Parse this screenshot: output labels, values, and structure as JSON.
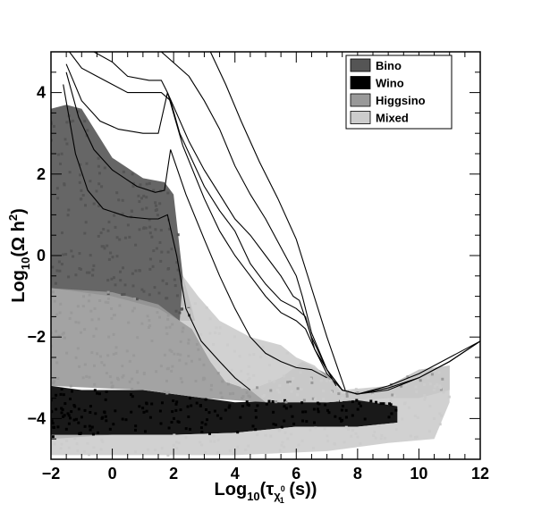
{
  "chart_data": {
    "type": "scatter",
    "xlabel": "Log10(τχ10 (s))",
    "ylabel": "Log10(Ω h2)",
    "xlim": [
      -2,
      12
    ],
    "ylim": [
      -5,
      5
    ],
    "x_ticks": [
      -2,
      0,
      2,
      4,
      6,
      8,
      10,
      12
    ],
    "y_ticks": [
      -4,
      -2,
      0,
      2,
      4
    ],
    "x_tick_labels": [
      "−2",
      "0",
      "2",
      "4",
      "6",
      "8",
      "10",
      "12"
    ],
    "y_tick_labels": [
      "−4",
      "−2",
      "0",
      "2",
      "4"
    ],
    "x_title": {
      "base": "Log",
      "sub": "10",
      "open": "(τ",
      "sym": "χ",
      "sym_sup": "0",
      "sym_sub": "1",
      "close": " (s))"
    },
    "y_title": {
      "base": "Log",
      "sub": "10",
      "open": "(Ω h",
      "sup": "2",
      "close": ")"
    },
    "legend_position": "top-right",
    "series": [
      {
        "name": "Bino",
        "color": "#555555",
        "regions": [
          {
            "polygon": [
              [
                -2,
                3.6
              ],
              [
                -1.5,
                3.7
              ],
              [
                -1,
                3.6
              ],
              [
                0,
                2.4
              ],
              [
                1,
                1.9
              ],
              [
                1.7,
                1.8
              ],
              [
                2,
                1.5
              ],
              [
                2.3,
                -0.5
              ],
              [
                2.6,
                -1.3
              ],
              [
                2.7,
                -1.6
              ],
              [
                2.2,
                -1.6
              ],
              [
                1.5,
                -1.3
              ],
              [
                0,
                -1.0
              ],
              [
                -1,
                -0.9
              ],
              [
                -2,
                -0.8
              ]
            ]
          }
        ]
      },
      {
        "name": "Wino",
        "color": "#000000",
        "regions": [
          {
            "polygon": [
              [
                -2,
                -3.2
              ],
              [
                -1,
                -3.3
              ],
              [
                1,
                -3.3
              ],
              [
                3,
                -3.5
              ],
              [
                4,
                -3.6
              ],
              [
                6,
                -3.55
              ],
              [
                7,
                -3.6
              ],
              [
                8,
                -3.55
              ],
              [
                9,
                -3.6
              ],
              [
                9.3,
                -3.7
              ],
              [
                9.3,
                -4.1
              ],
              [
                8,
                -4.2
              ],
              [
                6,
                -4.2
              ],
              [
                4,
                -4.35
              ],
              [
                2,
                -4.4
              ],
              [
                0,
                -4.4
              ],
              [
                -2,
                -4.5
              ]
            ]
          }
        ]
      },
      {
        "name": "Higgsino",
        "color": "#999999",
        "regions": [
          {
            "polygon": [
              [
                -2,
                -0.8
              ],
              [
                0,
                -0.9
              ],
              [
                1.5,
                -1.2
              ],
              [
                2.2,
                -1.6
              ],
              [
                2.6,
                -1.8
              ],
              [
                3.2,
                -2.6
              ],
              [
                3.7,
                -3.1
              ],
              [
                4.5,
                -3.3
              ],
              [
                5.5,
                -3.0
              ],
              [
                6.2,
                -2.6
              ],
              [
                7,
                -2.9
              ],
              [
                7.5,
                -3.4
              ],
              [
                9,
                -3.2
              ],
              [
                10,
                -2.8
              ],
              [
                11,
                -2.7
              ],
              [
                11,
                -3.3
              ],
              [
                10,
                -3.5
              ],
              [
                9,
                -3.5
              ],
              [
                7,
                -3.6
              ],
              [
                5,
                -3.6
              ],
              [
                3,
                -3.5
              ],
              [
                1,
                -3.3
              ],
              [
                -2,
                -3.2
              ]
            ]
          }
        ]
      },
      {
        "name": "Mixed",
        "color": "#cccccc",
        "regions": [
          {
            "polygon": [
              [
                2.3,
                -0.5
              ],
              [
                2.8,
                -1.0
              ],
              [
                3.5,
                -1.6
              ],
              [
                4.5,
                -2.0
              ],
              [
                5.5,
                -2.2
              ],
              [
                6,
                -2.5
              ],
              [
                6.6,
                -2.7
              ],
              [
                7,
                -3.0
              ],
              [
                7.5,
                -3.3
              ],
              [
                9,
                -3.2
              ],
              [
                10,
                -2.8
              ],
              [
                11,
                -2.7
              ],
              [
                11,
                -3.6
              ],
              [
                10.5,
                -4.5
              ],
              [
                9,
                -4.6
              ],
              [
                7,
                -4.8
              ],
              [
                4,
                -4.9
              ],
              [
                1,
                -4.9
              ],
              [
                -2,
                -4.9
              ],
              [
                -2,
                -4.4
              ],
              [
                0,
                -4.4
              ],
              [
                2,
                -4.4
              ],
              [
                4,
                -4.35
              ],
              [
                6,
                -4.2
              ],
              [
                8,
                -4.2
              ],
              [
                9.3,
                -4.1
              ],
              [
                9.3,
                -3.7
              ],
              [
                8,
                -3.55
              ],
              [
                7,
                -3.6
              ],
              [
                5,
                -3.6
              ],
              [
                4.5,
                -3.3
              ],
              [
                3.7,
                -3.1
              ],
              [
                3.2,
                -2.6
              ],
              [
                2.6,
                -1.8
              ],
              [
                2.2,
                -1.6
              ]
            ]
          }
        ]
      }
    ],
    "curves": [
      {
        "points": [
          [
            -1.6,
            4.2
          ],
          [
            -1.2,
            2.5
          ],
          [
            -0.8,
            1.6
          ],
          [
            -0.3,
            1.15
          ],
          [
            0.5,
            0.95
          ],
          [
            1.2,
            0.9
          ],
          [
            1.5,
            0.9
          ],
          [
            1.8,
            1.0
          ],
          [
            2.1,
            0.0
          ],
          [
            2.4,
            -1.3
          ],
          [
            2.9,
            -2.1
          ],
          [
            3.5,
            -2.6
          ],
          [
            4,
            -3.0
          ],
          [
            4.5,
            -3.3
          ]
        ]
      },
      {
        "points": [
          [
            -1.5,
            4.5
          ],
          [
            -1.1,
            3.4
          ],
          [
            -0.6,
            2.6
          ],
          [
            0,
            2.1
          ],
          [
            0.8,
            1.7
          ],
          [
            1.4,
            1.55
          ],
          [
            1.7,
            1.6
          ],
          [
            1.9,
            2.6
          ],
          [
            2.4,
            1.5
          ],
          [
            3,
            0.4
          ],
          [
            3.5,
            -0.5
          ],
          [
            4,
            -1.3
          ],
          [
            4.5,
            -2.0
          ],
          [
            5,
            -2.4
          ],
          [
            5.5,
            -2.6
          ],
          [
            6,
            -2.75
          ],
          [
            6.5,
            -2.8
          ],
          [
            7,
            -3.0
          ]
        ]
      },
      {
        "points": [
          [
            -1.5,
            4.7
          ],
          [
            -1,
            3.8
          ],
          [
            -0.4,
            3.3
          ],
          [
            0.2,
            3.1
          ],
          [
            1,
            3.0
          ],
          [
            1.5,
            3.0
          ],
          [
            1.8,
            4.0
          ],
          [
            2.3,
            2.7
          ],
          [
            3,
            1.4
          ],
          [
            3.5,
            0.6
          ],
          [
            4,
            0.0
          ],
          [
            4.5,
            -0.5
          ],
          [
            5,
            -1.0
          ],
          [
            5.5,
            -1.4
          ],
          [
            6,
            -1.6
          ],
          [
            6.3,
            -1.8
          ],
          [
            6.6,
            -2.3
          ],
          [
            7,
            -2.8
          ],
          [
            7.3,
            -3.2
          ]
        ]
      },
      {
        "points": [
          [
            -1.4,
            5.0
          ],
          [
            -1,
            4.6
          ],
          [
            -0.5,
            4.4
          ],
          [
            0,
            4.2
          ],
          [
            0.5,
            4.0
          ],
          [
            1.3,
            4.0
          ],
          [
            1.6,
            4.0
          ],
          [
            1.9,
            3.8
          ],
          [
            2.2,
            3.0
          ],
          [
            3,
            1.7
          ],
          [
            3.5,
            1.1
          ],
          [
            4,
            0.6
          ],
          [
            4.5,
            -0.2
          ],
          [
            5,
            -0.7
          ],
          [
            5.5,
            -1.1
          ],
          [
            6,
            -1.3
          ],
          [
            6.3,
            -1.5
          ],
          [
            6.6,
            -2.3
          ],
          [
            7,
            -2.9
          ],
          [
            7.5,
            -3.3
          ],
          [
            8,
            -3.4
          ],
          [
            9,
            -3.3
          ],
          [
            10,
            -3.0
          ],
          [
            11,
            -2.6
          ],
          [
            12,
            -2.1
          ]
        ]
      },
      {
        "points": [
          [
            -0.6,
            5.0
          ],
          [
            0,
            4.75
          ],
          [
            0.5,
            4.4
          ],
          [
            1.2,
            4.3
          ],
          [
            1.6,
            4.3
          ],
          [
            1.8,
            4.0
          ],
          [
            2.5,
            2.8
          ],
          [
            3,
            2.1
          ],
          [
            3.5,
            1.5
          ],
          [
            4,
            0.9
          ],
          [
            4.5,
            0.5
          ],
          [
            5,
            0.0
          ],
          [
            5.5,
            -0.5
          ],
          [
            5.9,
            -1.0
          ],
          [
            6.1,
            -1.1
          ],
          [
            6.5,
            -2.0
          ],
          [
            7,
            -2.8
          ],
          [
            7.5,
            -3.3
          ],
          [
            8,
            -3.4
          ],
          [
            9,
            -3.2
          ],
          [
            10,
            -2.9
          ],
          [
            11,
            -2.5
          ],
          [
            12,
            -2.1
          ]
        ]
      },
      {
        "points": [
          [
            1.6,
            5.0
          ],
          [
            2.5,
            4.4
          ],
          [
            3,
            3.8
          ],
          [
            3.5,
            3.1
          ],
          [
            4,
            2.2
          ],
          [
            4.5,
            1.5
          ],
          [
            5,
            0.9
          ],
          [
            5.5,
            0.2
          ],
          [
            6,
            -0.5
          ],
          [
            6.2,
            -1.0
          ],
          [
            6.5,
            -1.9
          ],
          [
            7,
            -2.8
          ],
          [
            7.5,
            -3.3
          ],
          [
            8,
            -3.4
          ],
          [
            9,
            -3.25
          ],
          [
            10,
            -3.0
          ],
          [
            11,
            -2.6
          ],
          [
            12,
            -2.1
          ]
        ]
      },
      {
        "points": [
          [
            3.2,
            5.0
          ],
          [
            3.7,
            4.2
          ],
          [
            4.2,
            3.3
          ],
          [
            4.8,
            2.3
          ],
          [
            5.4,
            1.4
          ],
          [
            6,
            0.4
          ],
          [
            6.5,
            -0.8
          ],
          [
            7,
            -2.0
          ],
          [
            7.6,
            -3.3
          ]
        ]
      }
    ]
  }
}
